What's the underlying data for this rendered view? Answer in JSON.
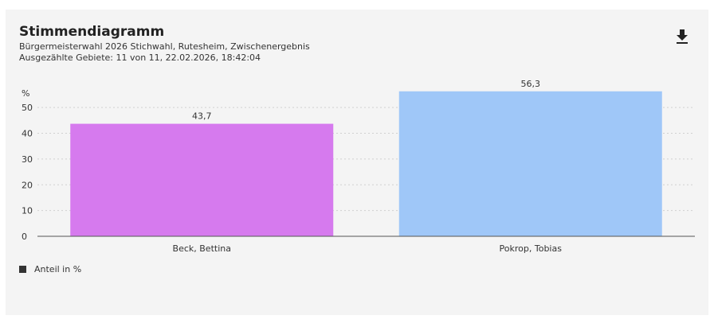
{
  "header": {
    "title": "Stimmendiagramm",
    "subtitle": "Bürgermeisterwahl 2026 Stichwahl, Rutesheim, Zwischenergebnis",
    "meta": "Ausgezählte Gebiete: 11 von 11, 22.02.2026, 18:42:04",
    "download_icon": "download-icon"
  },
  "legend": {
    "label": "Anteil in %",
    "color": "#333333"
  },
  "chart_data": {
    "type": "bar",
    "categories": [
      "Beck, Bettina",
      "Pokrop, Tobias"
    ],
    "series": [
      {
        "name": "Anteil in %",
        "values": [
          43.7,
          56.3
        ],
        "labels": [
          "43,7",
          "56,3"
        ]
      }
    ],
    "colors": [
      "#d67aee",
      "#9fc7f8"
    ],
    "ylabel": "%",
    "ylim": [
      0,
      55
    ],
    "yticks": [
      0,
      10,
      20,
      30,
      40,
      50
    ],
    "grid": true,
    "legend_position": "bottom-left"
  }
}
